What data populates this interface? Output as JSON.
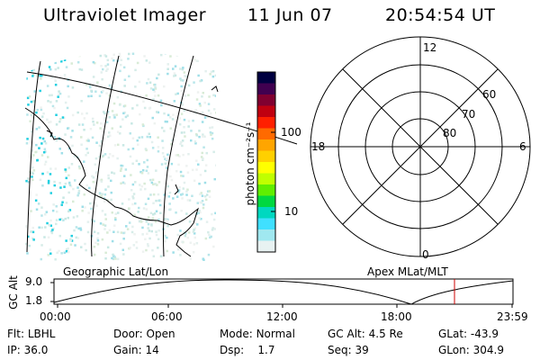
{
  "header": {
    "instrument": "Ultraviolet Imager",
    "date": "11 Jun 07",
    "time": "20:54:54 UT"
  },
  "geo_panel": {
    "label": "Geographic Lat/Lon"
  },
  "colorbar": {
    "unit_label": "photon cm⁻²s⁻¹",
    "ticks": [
      "100",
      "10"
    ],
    "colors": [
      "#000040",
      "#400050",
      "#800030",
      "#c00010",
      "#ff2000",
      "#ff6a00",
      "#ffa500",
      "#ffd000",
      "#ffff00",
      "#c0ff00",
      "#60ee00",
      "#00d840",
      "#00d8c0",
      "#40e0ff",
      "#a0e8f0",
      "#e8f2f2"
    ]
  },
  "polar_panel": {
    "label": "Apex MLat/MLT",
    "mlt_labels": {
      "top": "12",
      "left": "18",
      "right": "6",
      "bottom": "0"
    },
    "lat_labels": [
      "60",
      "70",
      "80"
    ]
  },
  "altitude_plot": {
    "ylabel": "GC Alt",
    "y_ticks": [
      "9.0",
      "1.8"
    ],
    "x_ticks": [
      "00:00",
      "06:00",
      "12:00",
      "18:00",
      "23:59"
    ],
    "marker_color": "#cc0000"
  },
  "info": {
    "row1": [
      {
        "key": "Flt:",
        "value": "LBHL"
      },
      {
        "key": "Door:",
        "value": "Open"
      },
      {
        "key": "Mode:",
        "value": "Normal"
      },
      {
        "key": "GC Alt:",
        "value": "4.5 Re"
      },
      {
        "key": "GLat:",
        "value": "-43.9"
      }
    ],
    "row2": [
      {
        "key": "IP:",
        "value": "36.0"
      },
      {
        "key": "Gain:",
        "value": "14"
      },
      {
        "key": "Dsp:",
        "value": "1.7"
      },
      {
        "key": "Seq:",
        "value": "39"
      },
      {
        "key": "GLon:",
        "value": "304.9"
      }
    ]
  }
}
